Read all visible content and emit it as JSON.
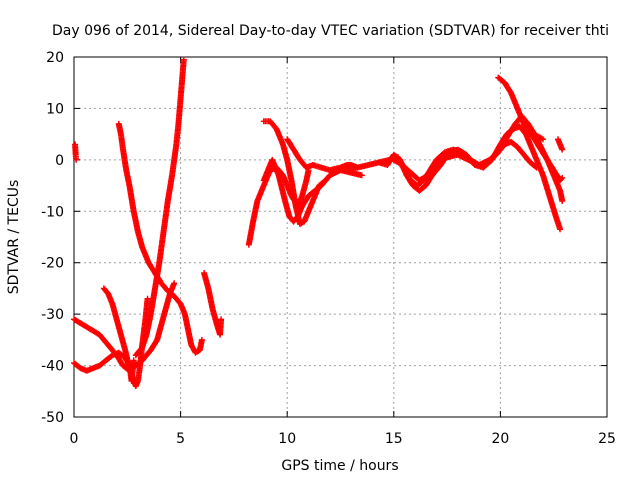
{
  "chart_data": {
    "type": "scatter",
    "title": "Day 096 of 2014, Sidereal Day-to-day VTEC variation (SDTVAR) for receiver thti",
    "xlabel": "GPS time / hours",
    "ylabel": "SDTVAR / TECUs",
    "xlim": [
      0,
      25
    ],
    "ylim": [
      -50,
      20
    ],
    "xticks": [
      0,
      5,
      10,
      15,
      20,
      25
    ],
    "yticks": [
      -50,
      -40,
      -30,
      -20,
      -10,
      0,
      10,
      20
    ],
    "grid": true,
    "marker": "plus",
    "color": "#ff0000",
    "series": [
      {
        "points": [
          [
            0.05,
            3
          ],
          [
            0.08,
            1
          ],
          [
            0.1,
            0
          ]
        ]
      },
      {
        "points": [
          [
            0,
            -31
          ],
          [
            0.4,
            -32
          ],
          [
            0.8,
            -33
          ],
          [
            1.2,
            -34
          ],
          [
            1.6,
            -36
          ],
          [
            2.0,
            -38
          ],
          [
            2.3,
            -40
          ],
          [
            2.6,
            -41
          ],
          [
            2.9,
            -40
          ],
          [
            3.2,
            -39
          ],
          [
            3.6,
            -37
          ],
          [
            3.9,
            -35
          ],
          [
            4.1,
            -32
          ],
          [
            4.3,
            -29
          ],
          [
            4.5,
            -26
          ],
          [
            4.7,
            -24
          ]
        ]
      },
      {
        "points": [
          [
            0,
            -39.5
          ],
          [
            0.3,
            -40.5
          ],
          [
            0.6,
            -41
          ],
          [
            0.9,
            -40.5
          ],
          [
            1.2,
            -40
          ],
          [
            1.5,
            -39
          ],
          [
            1.8,
            -38
          ],
          [
            2.1,
            -37.5
          ],
          [
            2.4,
            -38.5
          ],
          [
            2.6,
            -40
          ],
          [
            2.7,
            -43
          ],
          [
            2.8,
            -39
          ]
        ]
      },
      {
        "points": [
          [
            1.4,
            -25
          ],
          [
            1.6,
            -26
          ],
          [
            1.8,
            -28
          ],
          [
            2.0,
            -31
          ],
          [
            2.2,
            -34
          ],
          [
            2.4,
            -37
          ],
          [
            2.6,
            -40.5
          ],
          [
            2.8,
            -43
          ],
          [
            2.9,
            -44
          ],
          [
            3.0,
            -43
          ],
          [
            3.1,
            -40
          ],
          [
            3.2,
            -36
          ],
          [
            3.35,
            -31
          ],
          [
            3.45,
            -27
          ]
        ]
      },
      {
        "points": [
          [
            2.1,
            7
          ],
          [
            2.2,
            5
          ],
          [
            2.3,
            2
          ],
          [
            2.45,
            -2
          ],
          [
            2.6,
            -5
          ],
          [
            2.8,
            -10
          ],
          [
            3.0,
            -14
          ],
          [
            3.2,
            -17
          ],
          [
            3.5,
            -20
          ],
          [
            3.8,
            -22
          ],
          [
            4.1,
            -24
          ],
          [
            4.4,
            -25.5
          ],
          [
            4.7,
            -26.5
          ],
          [
            5.0,
            -28
          ],
          [
            5.2,
            -30
          ],
          [
            5.35,
            -33
          ],
          [
            5.5,
            -36
          ],
          [
            5.7,
            -37.5
          ],
          [
            5.9,
            -37
          ],
          [
            6.0,
            -35
          ]
        ]
      },
      {
        "points": [
          [
            2.9,
            -38
          ],
          [
            3.2,
            -36.5
          ],
          [
            3.4,
            -34
          ],
          [
            3.6,
            -30
          ],
          [
            3.8,
            -25
          ],
          [
            4.0,
            -20
          ],
          [
            4.2,
            -14
          ],
          [
            4.4,
            -8
          ],
          [
            4.6,
            -3
          ],
          [
            4.8,
            3
          ],
          [
            4.9,
            7
          ],
          [
            5.0,
            12
          ],
          [
            5.1,
            17
          ],
          [
            5.15,
            19.5
          ]
        ]
      },
      {
        "points": [
          [
            6.1,
            -22
          ],
          [
            6.3,
            -25
          ],
          [
            6.5,
            -29
          ],
          [
            6.7,
            -32
          ],
          [
            6.85,
            -34
          ],
          [
            6.9,
            -31
          ]
        ]
      },
      {
        "points": [
          [
            8.2,
            -16.5
          ],
          [
            8.4,
            -12
          ],
          [
            8.6,
            -8
          ],
          [
            8.8,
            -6
          ],
          [
            9.0,
            -4
          ],
          [
            9.2,
            -2
          ],
          [
            9.5,
            -1.5
          ],
          [
            9.8,
            -3
          ],
          [
            10.0,
            -5
          ],
          [
            10.2,
            -7
          ],
          [
            10.5,
            -9
          ],
          [
            10.7,
            -7
          ],
          [
            10.9,
            -4
          ],
          [
            11.0,
            -2
          ]
        ]
      },
      {
        "points": [
          [
            8.9,
            -4
          ],
          [
            9.1,
            -2
          ],
          [
            9.3,
            0
          ],
          [
            9.6,
            -3
          ],
          [
            9.9,
            -8
          ],
          [
            10.1,
            -11
          ],
          [
            10.3,
            -12
          ],
          [
            10.5,
            -11
          ],
          [
            10.7,
            -9
          ],
          [
            11.0,
            -7
          ],
          [
            11.3,
            -6
          ],
          [
            11.6,
            -5
          ],
          [
            12.0,
            -3
          ],
          [
            12.5,
            -2
          ],
          [
            13.0,
            -2.5
          ],
          [
            13.5,
            -3
          ]
        ]
      },
      {
        "points": [
          [
            8.9,
            7.5
          ],
          [
            9.2,
            7.5
          ],
          [
            9.5,
            6
          ],
          [
            9.8,
            3
          ],
          [
            10.0,
            0
          ],
          [
            10.2,
            -4
          ],
          [
            10.4,
            -9
          ],
          [
            10.6,
            -12.5
          ],
          [
            10.8,
            -12
          ],
          [
            11.0,
            -10
          ],
          [
            11.3,
            -7
          ],
          [
            11.5,
            -5
          ],
          [
            11.8,
            -4
          ]
        ]
      },
      {
        "points": [
          [
            10.0,
            4
          ],
          [
            10.3,
            2
          ],
          [
            10.6,
            0
          ],
          [
            10.9,
            -1.5
          ],
          [
            11.2,
            -1
          ],
          [
            11.6,
            -1.5
          ],
          [
            12.0,
            -2
          ],
          [
            12.5,
            -1.5
          ],
          [
            12.8,
            -1
          ],
          [
            13.0,
            -1
          ],
          [
            13.3,
            -1.5
          ]
        ]
      },
      {
        "points": [
          [
            12.8,
            -1.5
          ],
          [
            13.3,
            -1.5
          ],
          [
            13.8,
            -1
          ],
          [
            14.3,
            -0.5
          ],
          [
            14.8,
            0
          ],
          [
            15.2,
            0.5
          ],
          [
            15.5,
            -2
          ],
          [
            15.8,
            -4
          ],
          [
            16.1,
            -5
          ],
          [
            16.4,
            -4
          ],
          [
            16.7,
            -2
          ],
          [
            17.0,
            0
          ],
          [
            17.4,
            1.5
          ],
          [
            17.8,
            2
          ],
          [
            18.2,
            1.5
          ],
          [
            18.6,
            0
          ],
          [
            19.0,
            -1
          ],
          [
            19.4,
            -0.5
          ],
          [
            19.8,
            1
          ],
          [
            20.2,
            3
          ],
          [
            20.5,
            3.5
          ],
          [
            20.8,
            2.5
          ],
          [
            21.1,
            1
          ],
          [
            21.4,
            -0.5
          ],
          [
            21.7,
            -1.5
          ]
        ]
      },
      {
        "points": [
          [
            14.3,
            -0.5
          ],
          [
            14.7,
            -1
          ],
          [
            15.0,
            1
          ],
          [
            15.3,
            0
          ],
          [
            15.6,
            -3
          ],
          [
            15.9,
            -5
          ],
          [
            16.2,
            -6
          ],
          [
            16.5,
            -5
          ],
          [
            16.8,
            -3
          ],
          [
            17.2,
            -1
          ],
          [
            17.6,
            1.5
          ],
          [
            18.0,
            2
          ],
          [
            18.4,
            1
          ],
          [
            18.8,
            -1
          ],
          [
            19.2,
            -1.5
          ],
          [
            19.6,
            0
          ],
          [
            20.0,
            3
          ],
          [
            20.3,
            5
          ],
          [
            20.6,
            6
          ],
          [
            20.9,
            6.5
          ],
          [
            21.2,
            5
          ],
          [
            21.4,
            3
          ],
          [
            21.7,
            0
          ],
          [
            22.0,
            -3
          ],
          [
            22.3,
            -7
          ],
          [
            22.6,
            -11
          ],
          [
            22.8,
            -13.5
          ]
        ]
      },
      {
        "points": [
          [
            15.0,
            0
          ],
          [
            15.4,
            -1
          ],
          [
            15.8,
            -2.5
          ],
          [
            16.2,
            -4
          ],
          [
            16.6,
            -3
          ],
          [
            17.0,
            -1
          ],
          [
            17.5,
            0.5
          ],
          [
            18.0,
            1
          ],
          [
            18.5,
            0
          ],
          [
            19.0,
            -1
          ],
          [
            19.5,
            0
          ],
          [
            20.0,
            2
          ],
          [
            20.4,
            5
          ],
          [
            20.7,
            7
          ],
          [
            21.0,
            8.5
          ],
          [
            21.3,
            7
          ],
          [
            21.6,
            5
          ],
          [
            21.9,
            2.5
          ],
          [
            22.2,
            0
          ],
          [
            22.5,
            -3
          ],
          [
            22.8,
            -6
          ],
          [
            22.9,
            -8
          ]
        ]
      },
      {
        "points": [
          [
            19.9,
            16
          ],
          [
            20.2,
            15
          ],
          [
            20.5,
            13
          ],
          [
            20.8,
            10
          ],
          [
            21.0,
            8
          ],
          [
            21.2,
            6
          ],
          [
            21.5,
            5
          ],
          [
            21.8,
            4.5
          ],
          [
            22.0,
            4
          ]
        ]
      },
      {
        "points": [
          [
            21.0,
            8.5
          ],
          [
            21.3,
            6
          ],
          [
            21.6,
            4
          ],
          [
            21.9,
            2
          ],
          [
            22.2,
            0
          ],
          [
            22.5,
            -2
          ],
          [
            22.8,
            -4
          ],
          [
            22.9,
            -3.5
          ]
        ]
      },
      {
        "points": [
          [
            22.7,
            4
          ],
          [
            22.8,
            3
          ],
          [
            22.9,
            2
          ]
        ]
      }
    ]
  }
}
